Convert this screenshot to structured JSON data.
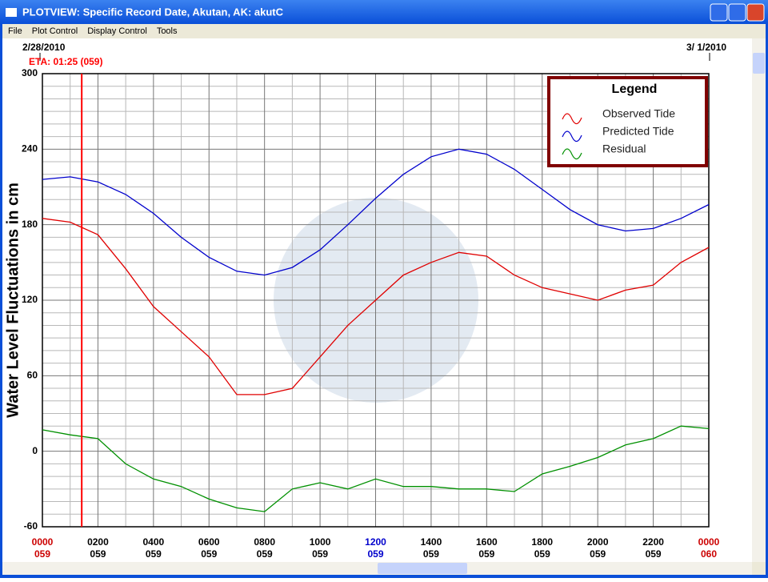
{
  "window": {
    "title": "PLOTVIEW: Specific Record Date, Akutan, AK: akutC",
    "menu": [
      "File",
      "Plot Control",
      "Display Control",
      "Tools"
    ]
  },
  "chart_data": {
    "type": "line",
    "start_date": "2/28/2010",
    "end_date": "3/ 1/2010",
    "eta_label": "ETA: 01:25 (059)",
    "eta": 1.4167,
    "eta_color": "#ff0000",
    "ylabel": "Water Level Fluctuations in cm",
    "legend_title": "Legend",
    "x": [
      0,
      1,
      2,
      3,
      4,
      5,
      6,
      7,
      8,
      9,
      10,
      11,
      12,
      13,
      14,
      15,
      16,
      17,
      18,
      19,
      20,
      21,
      22,
      23,
      24
    ],
    "series": [
      {
        "name": "Observed Tide",
        "color": "#e00000",
        "values": [
          185,
          182,
          172,
          145,
          115,
          95,
          75,
          45,
          45,
          50,
          75,
          100,
          120,
          140,
          150,
          158,
          155,
          140,
          130,
          125,
          120,
          128,
          132,
          150,
          162
        ]
      },
      {
        "name": "Predicted Tide",
        "color": "#0000cc",
        "values": [
          216,
          218,
          214,
          204,
          189,
          170,
          154,
          143,
          140,
          146,
          160,
          180,
          201,
          220,
          234,
          240,
          236,
          224,
          208,
          192,
          180,
          175,
          177,
          185,
          196
        ]
      },
      {
        "name": "Residual",
        "color": "#009000",
        "values": [
          17,
          13,
          10,
          -10,
          -22,
          -28,
          -38,
          -45,
          -48,
          -30,
          -25,
          -30,
          -22,
          -28,
          -28,
          -30,
          -30,
          -32,
          -18,
          -12,
          -5,
          5,
          10,
          20,
          18
        ]
      }
    ],
    "xlim": [
      0,
      24
    ],
    "ylim": [
      -60,
      300
    ],
    "yticks": [
      -60,
      0,
      60,
      120,
      180,
      240,
      300
    ],
    "xticks": [
      {
        "value": 0,
        "label": "0000"
      },
      {
        "value": 2,
        "label": "0200"
      },
      {
        "value": 4,
        "label": "0400"
      },
      {
        "value": 6,
        "label": "0600"
      },
      {
        "value": 8,
        "label": "0800"
      },
      {
        "value": 10,
        "label": "1000"
      },
      {
        "value": 12,
        "label": "1200"
      },
      {
        "value": 14,
        "label": "1400"
      },
      {
        "value": 16,
        "label": "1600"
      },
      {
        "value": 18,
        "label": "1800"
      },
      {
        "value": 20,
        "label": "2000"
      },
      {
        "value": 22,
        "label": "2200"
      },
      {
        "value": 24,
        "label": "0000"
      }
    ],
    "xtick_days": [
      "059",
      "059",
      "059",
      "059",
      "059",
      "059",
      "059",
      "059",
      "059",
      "059",
      "059",
      "059",
      "060"
    ],
    "xtick_colors": [
      "#cc0000",
      "#000000",
      "#000000",
      "#000000",
      "#000000",
      "#000000",
      "#0000cc",
      "#000000",
      "#000000",
      "#000000",
      "#000000",
      "#000000",
      "#cc0000"
    ],
    "xgrid": [
      1,
      3,
      5,
      7,
      9,
      11,
      13,
      15,
      17,
      19,
      21,
      23
    ],
    "ygrid": [
      -50,
      -40,
      -30,
      -20,
      -10,
      10,
      20,
      30,
      40,
      50,
      70,
      80,
      90,
      100,
      110,
      130,
      140,
      150,
      160,
      170,
      190,
      200,
      210,
      220,
      230,
      250,
      260,
      270,
      280,
      290
    ]
  }
}
